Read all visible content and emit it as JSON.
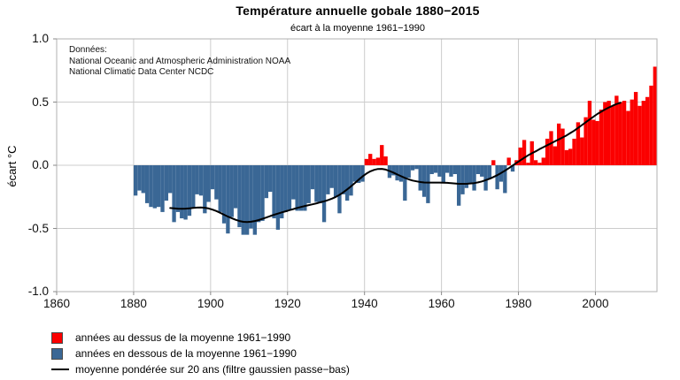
{
  "colors": {
    "above": "#fb0000",
    "below": "#3a6795",
    "line": "#000000",
    "grid": "#cccccc",
    "frame": "#b0b0b0",
    "tick": "#8a8a8a"
  },
  "annotation": {
    "lines": {
      "0": "Données:",
      "1": "National Oceanic and Atmospheric Administration NOAA",
      "2": "National Climatic Data Center NCDC"
    }
  },
  "legend": {
    "items": [
      {
        "swatch": "red-square",
        "color": "#fb0000",
        "label": "années au dessus de la moyenne 1961−1990"
      },
      {
        "swatch": "blue-square",
        "color": "#3a6795",
        "label": "années en dessous de la moyenne 1961−1990"
      },
      {
        "swatch": "black-line",
        "color": "#000000",
        "label": "moyenne pondérée sur 20 ans (filtre gaussien passe−bas)"
      }
    ]
  },
  "chart_data": {
    "type": "bar",
    "title": "Température annuelle gobale 1880−2015",
    "subtitle": "écart à la moyenne 1961−1990",
    "xlabel": "",
    "ylabel": "écart °C",
    "xlim": [
      1860,
      2016
    ],
    "ylim": [
      -1.0,
      1.0
    ],
    "x_ticks": [
      1860,
      1880,
      1900,
      1920,
      1940,
      1960,
      1980,
      2000
    ],
    "y_ticks": [
      1.0,
      0.5,
      0.0,
      -0.5,
      -1.0
    ],
    "grid": true,
    "legend_position": "bottom-left",
    "bar_rule": "red above 0, blue below 0",
    "series": [
      {
        "name": "écart annuel à la moyenne 1961−1990 (°C)",
        "start_year": 1880,
        "end_year": 2015,
        "values": [
          -0.24,
          -0.2,
          -0.22,
          -0.3,
          -0.33,
          -0.34,
          -0.33,
          -0.37,
          -0.28,
          -0.22,
          -0.45,
          -0.37,
          -0.42,
          -0.43,
          -0.4,
          -0.34,
          -0.23,
          -0.24,
          -0.38,
          -0.29,
          -0.19,
          -0.27,
          -0.37,
          -0.46,
          -0.54,
          -0.41,
          -0.34,
          -0.49,
          -0.55,
          -0.55,
          -0.5,
          -0.55,
          -0.45,
          -0.44,
          -0.26,
          -0.21,
          -0.42,
          -0.51,
          -0.42,
          -0.37,
          -0.35,
          -0.27,
          -0.36,
          -0.36,
          -0.36,
          -0.3,
          -0.19,
          -0.29,
          -0.3,
          -0.45,
          -0.23,
          -0.18,
          -0.25,
          -0.38,
          -0.23,
          -0.28,
          -0.24,
          -0.13,
          -0.14,
          -0.13,
          0.05,
          0.09,
          0.05,
          0.06,
          0.16,
          0.07,
          -0.1,
          -0.08,
          -0.12,
          -0.13,
          -0.28,
          -0.1,
          -0.04,
          -0.03,
          -0.2,
          -0.25,
          -0.3,
          -0.07,
          -0.06,
          -0.09,
          -0.14,
          -0.06,
          -0.09,
          -0.07,
          -0.32,
          -0.23,
          -0.18,
          -0.14,
          -0.2,
          -0.07,
          -0.09,
          -0.2,
          -0.11,
          0.04,
          -0.19,
          -0.13,
          -0.22,
          0.06,
          -0.05,
          0.04,
          0.14,
          0.2,
          0.02,
          0.19,
          0.04,
          0.02,
          0.06,
          0.21,
          0.27,
          0.15,
          0.33,
          0.29,
          0.12,
          0.13,
          0.21,
          0.34,
          0.22,
          0.38,
          0.51,
          0.36,
          0.35,
          0.44,
          0.5,
          0.51,
          0.47,
          0.55,
          0.5,
          0.51,
          0.43,
          0.52,
          0.58,
          0.47,
          0.51,
          0.54,
          0.63,
          0.78
        ]
      }
    ],
    "smoothed_line": {
      "name": "moyenne pondérée sur 20 ans (filtre gaussien passe−bas)",
      "method": "gaussian",
      "window_years": 20,
      "sigma_years": 4.5,
      "draw_span_years": [
        1889,
        2006
      ]
    }
  }
}
